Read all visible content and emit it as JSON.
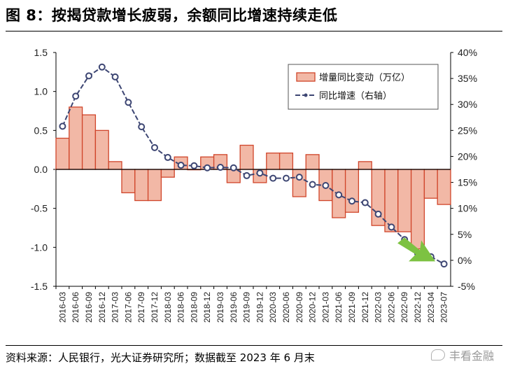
{
  "title": "图 8：按揭贷款增长疲弱，余额同比增速持续走低",
  "source": "资料来源：人民银行，光大证券研究所；数据截至 2023 年 6 月末",
  "watermark": "丰看金融",
  "colors": {
    "bar_fill": "#f2b8a6",
    "bar_edge": "#d0452a",
    "line": "#3d4673",
    "arrow": "#7dc242"
  },
  "chart_data": {
    "type": "bar+line",
    "categories": [
      "2016-03",
      "2016-06",
      "2016-09",
      "2016-12",
      "2017-03",
      "2017-06",
      "2017-09",
      "2017-12",
      "2018-03",
      "2018-06",
      "2018-09",
      "2018-12",
      "2019-03",
      "2019-06",
      "2019-09",
      "2019-12",
      "2020-03",
      "2020-06",
      "2020-09",
      "2020-12",
      "2021-03",
      "2021-06",
      "2021-09",
      "2021-12",
      "2022-03",
      "2022-06",
      "2022-09",
      "2022-12",
      "2023-04",
      "2023-07"
    ],
    "series": [
      {
        "name": "增量同比变动（万亿）",
        "axis": "left",
        "type": "bar",
        "values": [
          0.4,
          0.8,
          0.7,
          0.5,
          0.1,
          -0.3,
          -0.4,
          -0.4,
          -0.1,
          0.16,
          0.0,
          0.16,
          0.19,
          -0.17,
          0.31,
          -0.17,
          0.21,
          0.21,
          -0.35,
          0.19,
          -0.4,
          -0.62,
          -0.55,
          0.1,
          -0.72,
          -0.8,
          -0.8,
          -1.02,
          -0.37,
          -0.45
        ]
      },
      {
        "name": "同比增速（右轴）",
        "axis": "right",
        "type": "line",
        "values": [
          25.8,
          31.6,
          35.5,
          37.2,
          35.3,
          30.4,
          25.7,
          21.7,
          19.8,
          18.3,
          18.2,
          17.8,
          17.9,
          17.8,
          16.3,
          16.8,
          15.8,
          15.8,
          16.0,
          14.6,
          14.4,
          12.6,
          11.4,
          11.1,
          8.9,
          6.4,
          4.0,
          1.3,
          0.7,
          -0.7
        ]
      }
    ],
    "left_axis": {
      "min": -1.5,
      "max": 1.5,
      "ticks": [
        "1.5",
        "1.0",
        "0.5",
        "0.0",
        "-0.5",
        "-1.0",
        "-1.5"
      ]
    },
    "right_axis": {
      "min": -5,
      "max": 40,
      "ticks": [
        "40%",
        "35%",
        "30%",
        "25%",
        "20%",
        "15%",
        "10%",
        "5%",
        "0%",
        "-5%"
      ]
    },
    "x_tick_labels": [
      "2016-03",
      "2016-06",
      "2016-09",
      "2016-12",
      "2017-03",
      "2017-06",
      "2017-09",
      "2017-12",
      "2018-03",
      "2018-06",
      "2018-09",
      "2018-12",
      "2019-03",
      "2019-06",
      "2019-09",
      "2019-12",
      "2020-03",
      "2020-06",
      "2020-09",
      "2020-12",
      "2021-03",
      "2021-06",
      "2021-09",
      "2021-12",
      "2022-03",
      "2022-06",
      "2022-09",
      "2022-12",
      "2023-04",
      "2023-07"
    ],
    "legend": [
      "增量同比变动（万亿）",
      "同比增速（右轴）"
    ],
    "legend_position": "top-right",
    "grid": false
  }
}
